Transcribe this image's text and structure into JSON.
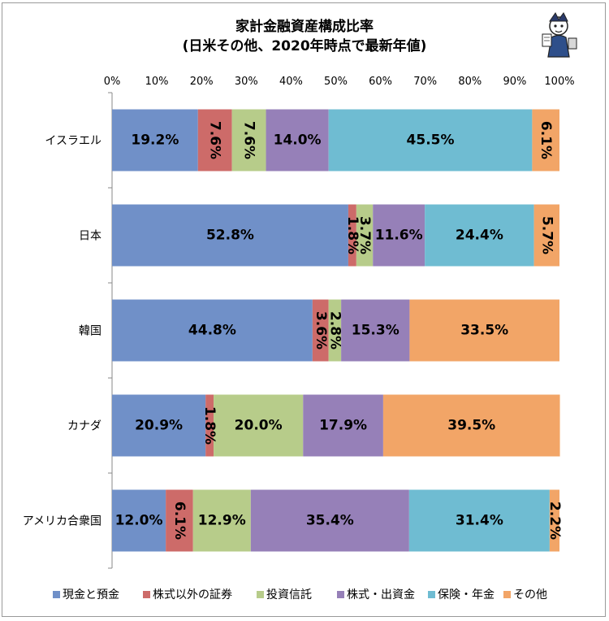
{
  "chart_data": {
    "type": "bar",
    "orientation": "horizontal",
    "stacked": "percent",
    "title": [
      "家計金融資産構成比率",
      "(日米その他、2020年時点で最新年値)"
    ],
    "xlabel": "",
    "ylabel": "",
    "xlim": [
      0,
      100
    ],
    "x_ticks": [
      "0%",
      "10%",
      "20%",
      "30%",
      "40%",
      "50%",
      "60%",
      "70%",
      "80%",
      "90%",
      "100%"
    ],
    "grid": false,
    "legend_position": "bottom",
    "categories": [
      "イスラエル",
      "日本",
      "韓国",
      "カナダ",
      "アメリカ合衆国"
    ],
    "series": [
      {
        "name": "現金と預金",
        "color": "#7090c8",
        "values": [
          19.2,
          52.8,
          44.8,
          20.9,
          12.0
        ]
      },
      {
        "name": "株式以外の証券",
        "color": "#cd6b69",
        "values": [
          7.6,
          1.8,
          3.6,
          1.8,
          6.1
        ]
      },
      {
        "name": "投資信託",
        "color": "#b7cc8a",
        "values": [
          7.6,
          3.7,
          2.8,
          20.0,
          12.9
        ]
      },
      {
        "name": "株式・出資金",
        "color": "#9680b8",
        "values": [
          14.0,
          11.6,
          15.3,
          17.9,
          35.4
        ]
      },
      {
        "name": "保険・年金",
        "color": "#6fbcd2",
        "values": [
          45.5,
          24.4,
          0,
          0,
          31.4
        ]
      },
      {
        "name": "その他",
        "color": "#f2a567",
        "values": [
          6.1,
          5.7,
          33.5,
          39.5,
          2.2
        ]
      }
    ],
    "data_labels": [
      [
        "19.2%",
        "7.6%",
        "7.6%",
        "14.0%",
        "45.5%",
        "6.1%"
      ],
      [
        "52.8%",
        "1.8%",
        "3.7%",
        "11.6%",
        "24.4%",
        "5.7%"
      ],
      [
        "44.8%",
        "3.6%",
        "2.8%",
        "15.3%",
        "",
        "33.5%"
      ],
      [
        "20.9%",
        "1.8%",
        "20.0%",
        "17.9%",
        "",
        "39.5%"
      ],
      [
        "12.0%",
        "6.1%",
        "12.9%",
        "35.4%",
        "31.4%",
        "2.2%"
      ]
    ],
    "vertical_labels": [
      [
        false,
        true,
        true,
        false,
        false,
        true
      ],
      [
        false,
        true,
        true,
        false,
        false,
        true
      ],
      [
        false,
        true,
        true,
        false,
        false,
        false
      ],
      [
        false,
        true,
        false,
        false,
        false,
        false
      ],
      [
        false,
        true,
        false,
        false,
        false,
        true
      ]
    ]
  },
  "mascot": "mascot-illustration"
}
